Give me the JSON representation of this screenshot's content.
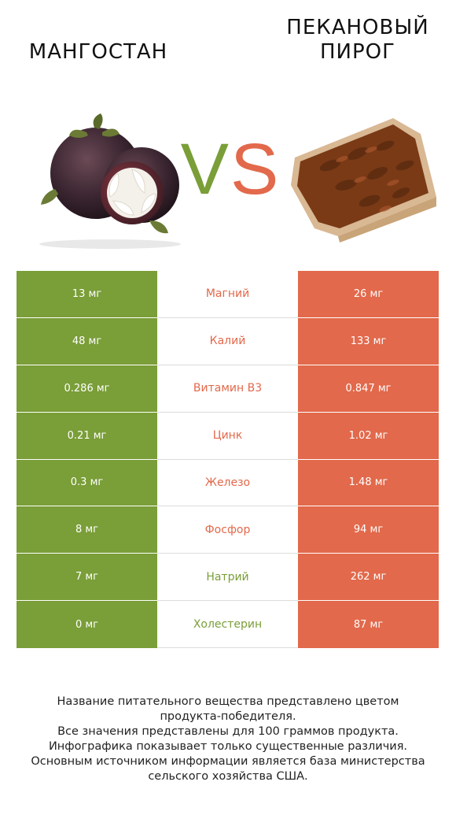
{
  "left_product": {
    "title_lines": [
      "МАНГОСТАН"
    ]
  },
  "right_product": {
    "title_lines": [
      "ПЕКАНОВЫЙ",
      "ПИРОГ"
    ]
  },
  "vs": {
    "v": "V",
    "s": "S"
  },
  "colors": {
    "left": "#7a9e38",
    "right": "#e2694b"
  },
  "rows": [
    {
      "left": "13 мг",
      "name": "Магний",
      "right": "26 мг",
      "winner": "right"
    },
    {
      "left": "48 мг",
      "name": "Калий",
      "right": "133 мг",
      "winner": "right"
    },
    {
      "left": "0.286 мг",
      "name": "Витамин B3",
      "right": "0.847 мг",
      "winner": "right"
    },
    {
      "left": "0.21 мг",
      "name": "Цинк",
      "right": "1.02 мг",
      "winner": "right"
    },
    {
      "left": "0.3 мг",
      "name": "Железо",
      "right": "1.48 мг",
      "winner": "right"
    },
    {
      "left": "8 мг",
      "name": "Фосфор",
      "right": "94 мг",
      "winner": "right"
    },
    {
      "left": "7 мг",
      "name": "Натрий",
      "right": "262 мг",
      "winner": "left"
    },
    {
      "left": "0 мг",
      "name": "Холестерин",
      "right": "87 мг",
      "winner": "left"
    }
  ],
  "footer_lines": [
    "Название питательного вещества представлено цветом",
    "продукта-победителя.",
    "Все значения представлены для 100 граммов продукта.",
    "Инфографика показывает только существенные различия.",
    "Основным источником информации является база министерства",
    "сельского хозяйства США."
  ]
}
